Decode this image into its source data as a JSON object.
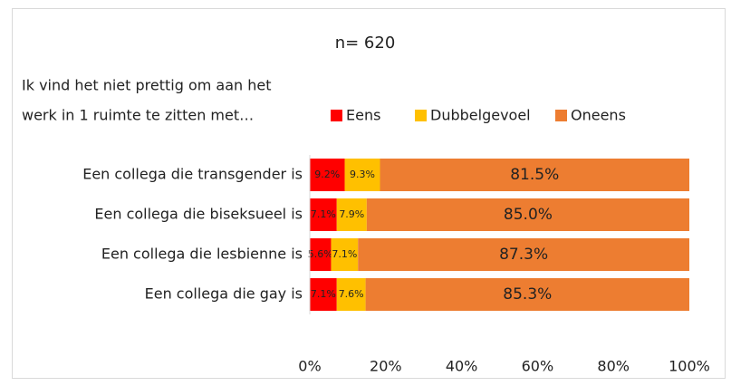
{
  "chart_data": {
    "type": "stacked_barh",
    "title": "n= 620",
    "subtitle": [
      "Ik vind het niet prettig om aan het",
      "werk in 1 ruimte te zitten met…"
    ],
    "categories": [
      "Een collega die transgender is",
      "Een collega die biseksueel is",
      "Een collega die lesbienne is",
      "Een collega die gay is"
    ],
    "series": [
      {
        "name": "Eens",
        "color": "#ff0000",
        "values": [
          9.2,
          7.1,
          5.6,
          7.1
        ],
        "value_labels": [
          "9.2%",
          "7.1%",
          "5.6%",
          "7.1%"
        ]
      },
      {
        "name": "Dubbelgevoel",
        "color": "#ffc000",
        "values": [
          9.3,
          7.9,
          7.1,
          7.6
        ],
        "value_labels": [
          "9.3%",
          "7.9%",
          "7.1%",
          "7.6%"
        ]
      },
      {
        "name": "Oneens",
        "color": "#ed7d31",
        "values": [
          81.5,
          85.0,
          87.3,
          85.3
        ],
        "value_labels": [
          "81.5%",
          "85.0%",
          "87.3%",
          "85.3%"
        ]
      }
    ],
    "xlim": [
      0,
      100
    ],
    "xticks": [
      {
        "value": 0,
        "label": "0%"
      },
      {
        "value": 20,
        "label": "20%"
      },
      {
        "value": 40,
        "label": "40%"
      },
      {
        "value": 60,
        "label": "60%"
      },
      {
        "value": 80,
        "label": "80%"
      },
      {
        "value": 100,
        "label": "100%"
      }
    ]
  }
}
